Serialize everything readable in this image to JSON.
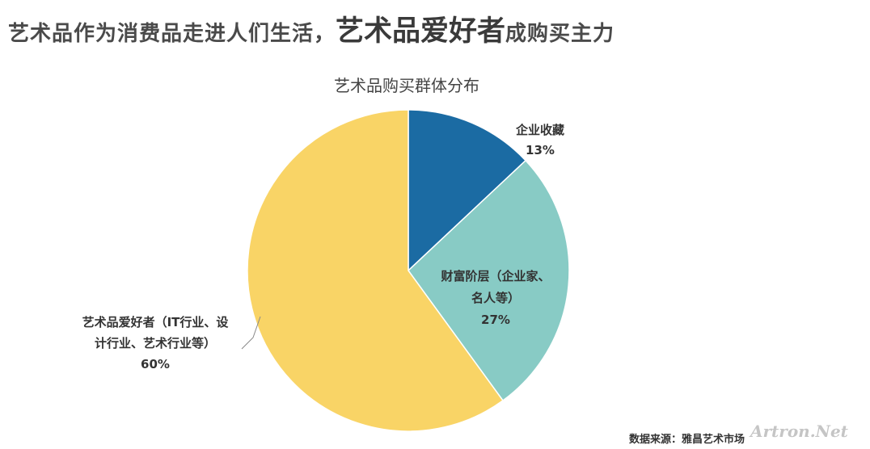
{
  "headline": {
    "part1": "艺术品作为消费品走进人们生活，",
    "part2": "艺术品爱好者",
    "part3": "成购买主力"
  },
  "chart_data": {
    "type": "pie",
    "title": "艺术品购买群体分布",
    "slices": [
      {
        "label_lines": [
          "企业收藏"
        ],
        "value": 13,
        "value_label": "13%",
        "color": "#1b6ba3"
      },
      {
        "label_lines": [
          "财富阶层（企业家、",
          "名人等）"
        ],
        "value": 27,
        "value_label": "27%",
        "color": "#88cbc5"
      },
      {
        "label_lines": [
          "艺术品爱好者（IT行业、设",
          "计行业、艺术行业等）"
        ],
        "value": 60,
        "value_label": "60%",
        "color": "#f9d466"
      }
    ]
  },
  "source": "数据来源：雅昌艺术市场",
  "watermark": "Artron.Net"
}
